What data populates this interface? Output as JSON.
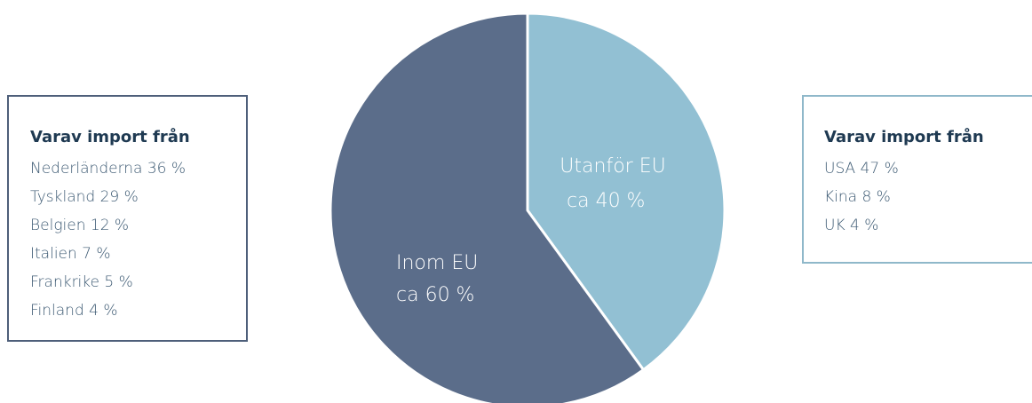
{
  "chart_data": {
    "type": "pie",
    "categories": [
      "Utanför EU",
      "Inom EU"
    ],
    "values": [
      40,
      60
    ],
    "value_labels": [
      "ca 40 %",
      "ca 60 %"
    ],
    "colors": [
      "#92c0d3",
      "#5b6d8a"
    ]
  },
  "boxes": [
    {
      "title": "Varav import från",
      "border_color": "#4e5f7a",
      "items": [
        "Nederländerna 36 %",
        "Tyskland 29 %",
        "Belgien 12 %",
        "Italien 7 %",
        "Frankrike 5 %",
        "Finland 4 %"
      ]
    },
    {
      "title": "Varav import från",
      "border_color": "#8fb8ca",
      "items": [
        "USA 47 %",
        "Kina 8 %",
        "UK 4 %"
      ]
    }
  ]
}
